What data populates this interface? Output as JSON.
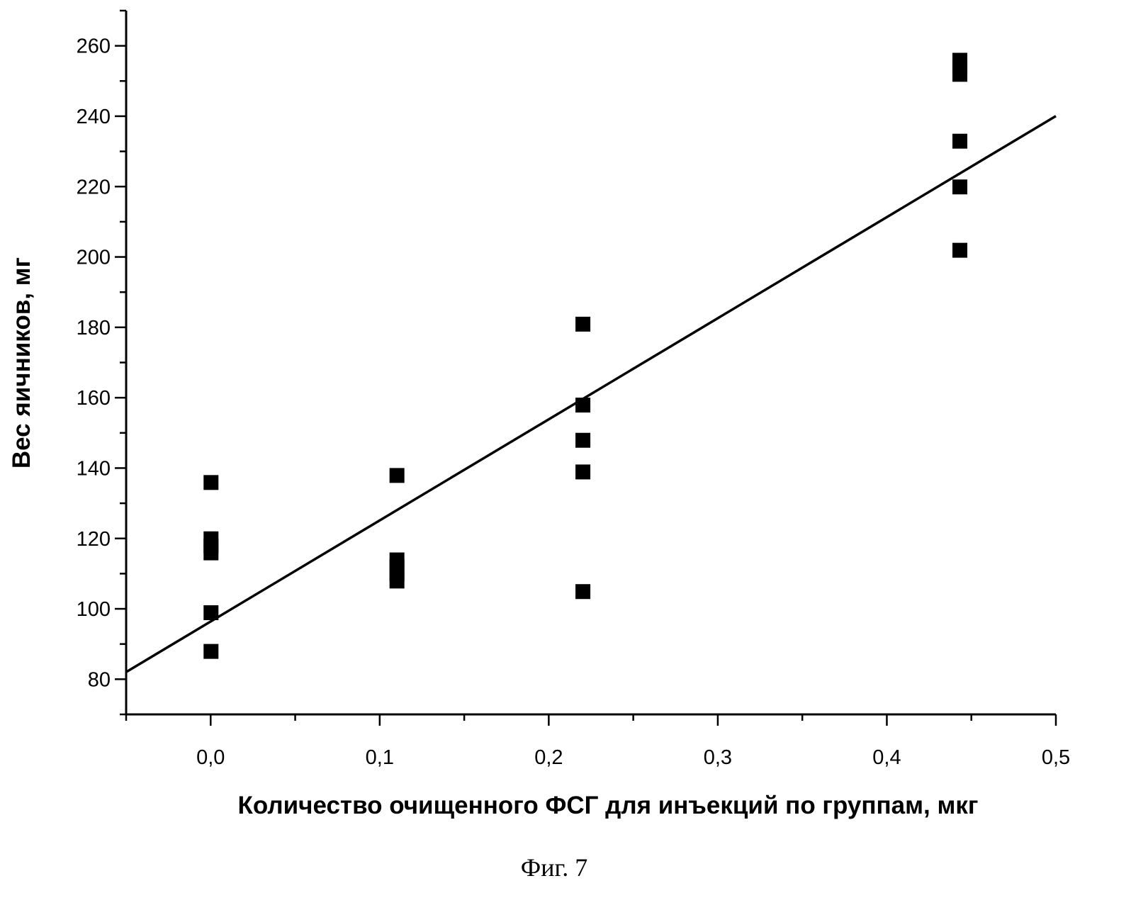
{
  "chart_data": {
    "type": "scatter",
    "title": "",
    "xlabel": "Количество очищенного ФСГ для инъекций по группам, мкг",
    "ylabel": "Вес яичников, мг",
    "caption": "Фиг. 7",
    "xlim": [
      -0.05,
      0.5
    ],
    "ylim": [
      70,
      270
    ],
    "grid": false,
    "x_ticks": [
      0.0,
      0.1,
      0.2,
      0.3,
      0.4,
      0.5
    ],
    "x_tick_labels": [
      "0,0",
      "0,1",
      "0,2",
      "0,3",
      "0,4",
      "0,5"
    ],
    "y_ticks": [
      80,
      100,
      120,
      140,
      160,
      180,
      200,
      220,
      240,
      260
    ],
    "y_tick_labels": [
      "80",
      "100",
      "120",
      "140",
      "160",
      "180",
      "200",
      "220",
      "240",
      "260"
    ],
    "series": [
      {
        "name": "data",
        "marker": "square",
        "color": "#000000",
        "points": [
          [
            0.0,
            136
          ],
          [
            0.0,
            120
          ],
          [
            0.0,
            118
          ],
          [
            0.0,
            116
          ],
          [
            0.0,
            99
          ],
          [
            0.0,
            88
          ],
          [
            0.11,
            138
          ],
          [
            0.11,
            114
          ],
          [
            0.11,
            112
          ],
          [
            0.11,
            110
          ],
          [
            0.11,
            108
          ],
          [
            0.22,
            181
          ],
          [
            0.22,
            158
          ],
          [
            0.22,
            148
          ],
          [
            0.22,
            139
          ],
          [
            0.22,
            105
          ],
          [
            0.443,
            256
          ],
          [
            0.443,
            254
          ],
          [
            0.443,
            252
          ],
          [
            0.443,
            233
          ],
          [
            0.443,
            220
          ],
          [
            0.443,
            202
          ]
        ]
      }
    ],
    "fit_line": {
      "name": "linear fit",
      "slope": 287.3,
      "intercept": 96.4,
      "x_range": [
        -0.05,
        0.5
      ]
    }
  }
}
